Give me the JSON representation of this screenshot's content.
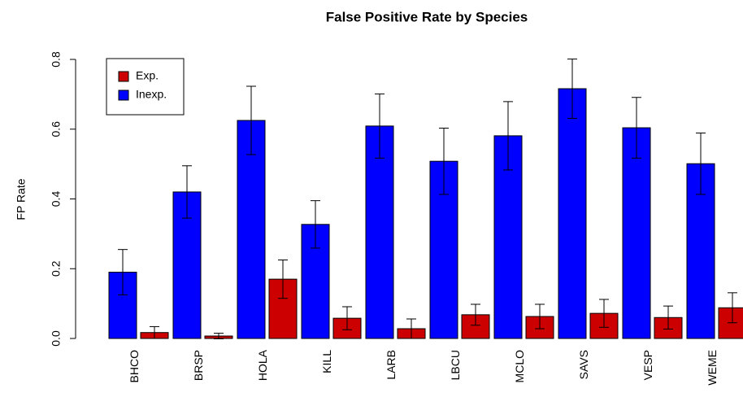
{
  "chart_data": {
    "type": "bar",
    "title": "False Positive Rate by Species",
    "y_label": "FP Rate",
    "categories": [
      "BHCO",
      "BRSP",
      "HOLA",
      "KILL",
      "LARB",
      "LBCU",
      "MCLO",
      "SAVS",
      "VESP",
      "WEME"
    ],
    "series": [
      {
        "name": "Inexp.",
        "color": "#0000ff",
        "values": [
          0.19,
          0.42,
          0.625,
          0.327,
          0.609,
          0.508,
          0.581,
          0.716,
          0.604,
          0.501
        ],
        "errors": [
          0.065,
          0.075,
          0.098,
          0.068,
          0.092,
          0.095,
          0.098,
          0.085,
          0.087,
          0.088
        ]
      },
      {
        "name": "Exp.",
        "color": "#cc0000",
        "values": [
          0.017,
          0.007,
          0.17,
          0.058,
          0.028,
          0.068,
          0.063,
          0.072,
          0.06,
          0.088
        ],
        "errors": [
          0.017,
          0.008,
          0.055,
          0.033,
          0.028,
          0.03,
          0.035,
          0.04,
          0.033,
          0.043
        ]
      }
    ],
    "legend_order": [
      1,
      0
    ],
    "ylim": [
      0,
      0.8
    ],
    "yticks": [
      {
        "value": 0,
        "label": "0.0"
      },
      0.2,
      0.4,
      0.6,
      0.8
    ]
  }
}
